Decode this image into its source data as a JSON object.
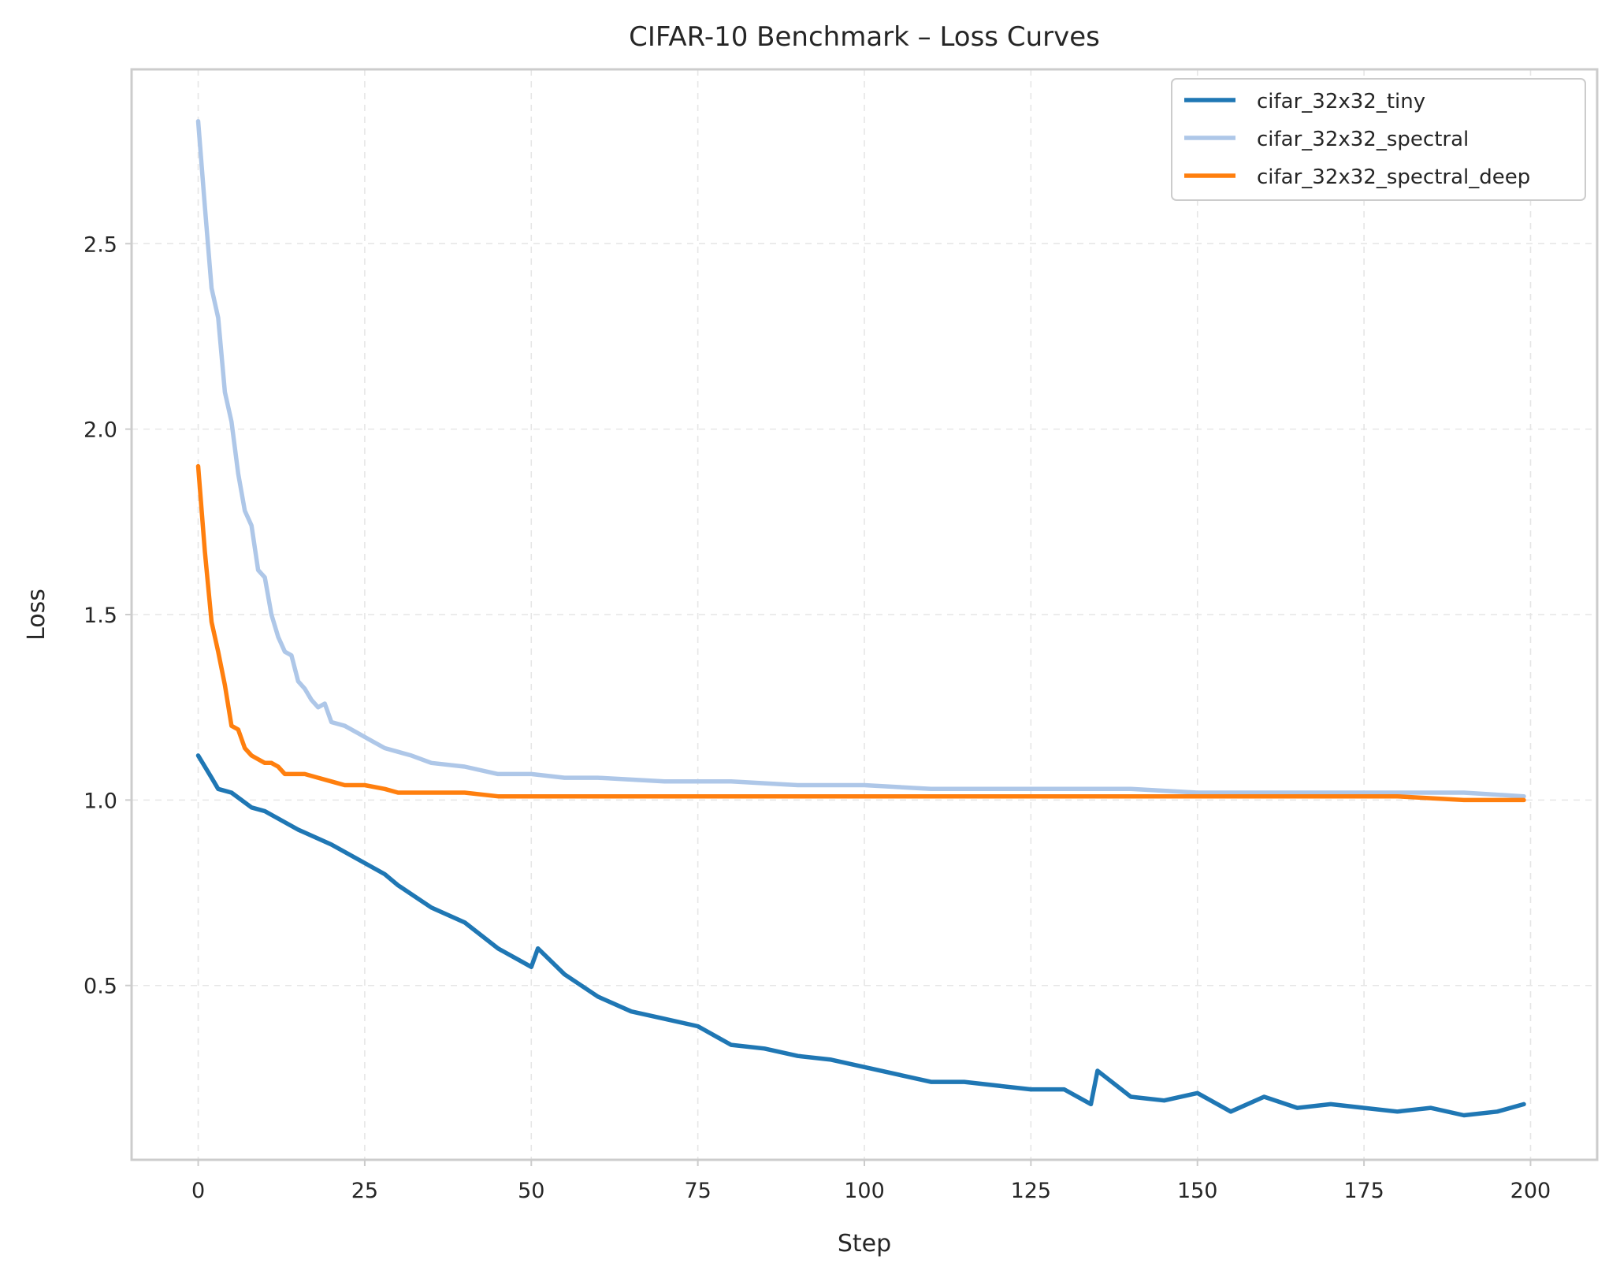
{
  "chart_data": {
    "type": "line",
    "title": "CIFAR-10 Benchmark – Loss Curves",
    "xlabel": "Step",
    "ylabel": "Loss",
    "xlim": [
      -10,
      210
    ],
    "ylim": [
      0.03,
      2.97
    ],
    "xticks": [
      0,
      25,
      50,
      75,
      100,
      125,
      150,
      175,
      200
    ],
    "xtick_labels": [
      "0",
      "25",
      "50",
      "75",
      "100",
      "125",
      "150",
      "175",
      "200"
    ],
    "yticks": [
      0.5,
      1.0,
      1.5,
      2.0,
      2.5
    ],
    "ytick_labels": [
      "0.5",
      "1.0",
      "1.5",
      "2.0",
      "2.5"
    ],
    "grid": true,
    "legend_position": "top-right",
    "series": [
      {
        "name": "cifar_32x32_tiny",
        "color": "#1f77b4",
        "x": [
          0,
          2,
          3,
          5,
          8,
          10,
          12,
          15,
          20,
          25,
          28,
          30,
          35,
          40,
          45,
          48,
          50,
          51,
          55,
          60,
          65,
          70,
          75,
          78,
          80,
          85,
          90,
          95,
          100,
          105,
          110,
          115,
          120,
          125,
          130,
          134,
          135,
          140,
          145,
          150,
          155,
          160,
          165,
          170,
          175,
          180,
          185,
          190,
          195,
          199
        ],
        "y": [
          1.12,
          1.06,
          1.03,
          1.02,
          0.98,
          0.97,
          0.95,
          0.92,
          0.88,
          0.83,
          0.8,
          0.77,
          0.71,
          0.67,
          0.6,
          0.57,
          0.55,
          0.6,
          0.53,
          0.47,
          0.43,
          0.41,
          0.39,
          0.36,
          0.34,
          0.33,
          0.31,
          0.3,
          0.28,
          0.26,
          0.24,
          0.24,
          0.23,
          0.22,
          0.22,
          0.18,
          0.27,
          0.2,
          0.19,
          0.21,
          0.16,
          0.2,
          0.17,
          0.18,
          0.17,
          0.16,
          0.17,
          0.15,
          0.16,
          0.18
        ]
      },
      {
        "name": "cifar_32x32_spectral",
        "color": "#aec7e8",
        "x": [
          0,
          1,
          2,
          3,
          4,
          5,
          6,
          7,
          8,
          9,
          10,
          11,
          12,
          13,
          14,
          15,
          16,
          17,
          18,
          19,
          20,
          22,
          24,
          26,
          28,
          30,
          32,
          35,
          40,
          45,
          50,
          55,
          60,
          70,
          80,
          90,
          100,
          110,
          120,
          130,
          140,
          150,
          160,
          170,
          180,
          190,
          199
        ],
        "y": [
          2.83,
          2.6,
          2.38,
          2.3,
          2.1,
          2.02,
          1.88,
          1.78,
          1.74,
          1.62,
          1.6,
          1.5,
          1.44,
          1.4,
          1.39,
          1.32,
          1.3,
          1.27,
          1.25,
          1.26,
          1.21,
          1.2,
          1.18,
          1.16,
          1.14,
          1.13,
          1.12,
          1.1,
          1.09,
          1.07,
          1.07,
          1.06,
          1.06,
          1.05,
          1.05,
          1.04,
          1.04,
          1.03,
          1.03,
          1.03,
          1.03,
          1.02,
          1.02,
          1.02,
          1.02,
          1.02,
          1.01
        ]
      },
      {
        "name": "cifar_32x32_spectral_deep",
        "color": "#ff7f0e",
        "x": [
          0,
          1,
          2,
          3,
          4,
          5,
          6,
          7,
          8,
          9,
          10,
          11,
          12,
          13,
          14,
          15,
          16,
          18,
          20,
          22,
          25,
          28,
          30,
          35,
          40,
          45,
          50,
          60,
          70,
          80,
          90,
          100,
          110,
          120,
          130,
          140,
          150,
          160,
          170,
          180,
          190,
          199
        ],
        "y": [
          1.9,
          1.67,
          1.48,
          1.4,
          1.31,
          1.2,
          1.19,
          1.14,
          1.12,
          1.11,
          1.1,
          1.1,
          1.09,
          1.07,
          1.07,
          1.07,
          1.07,
          1.06,
          1.05,
          1.04,
          1.04,
          1.03,
          1.02,
          1.02,
          1.02,
          1.01,
          1.01,
          1.01,
          1.01,
          1.01,
          1.01,
          1.01,
          1.01,
          1.01,
          1.01,
          1.01,
          1.01,
          1.01,
          1.01,
          1.01,
          1.0,
          1.0
        ]
      }
    ]
  }
}
